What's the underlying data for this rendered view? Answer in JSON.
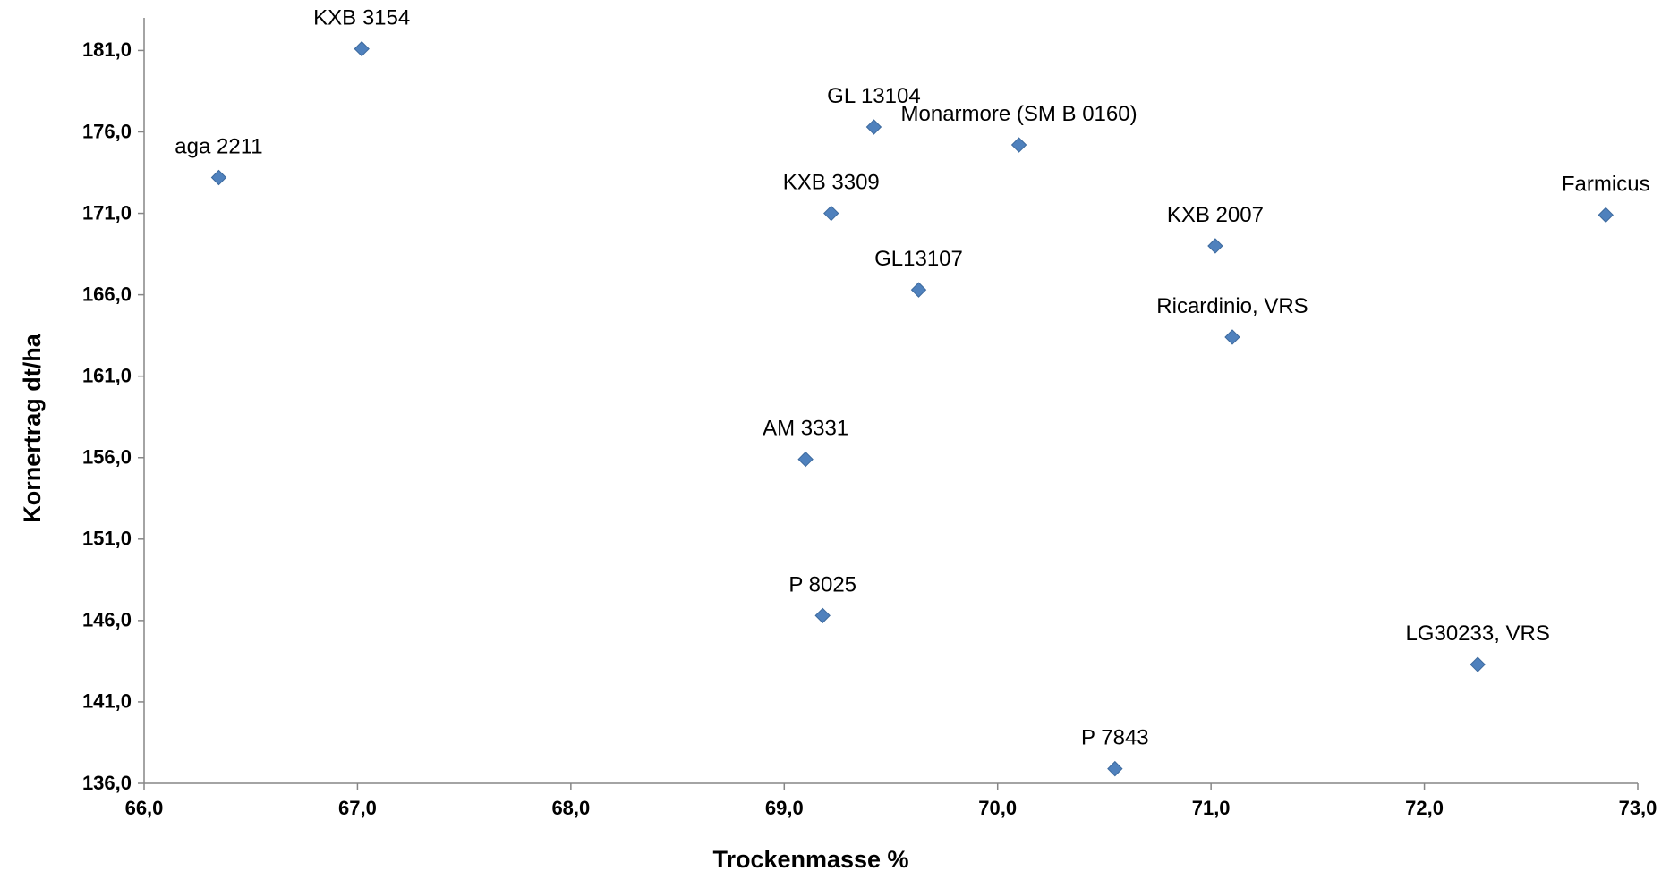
{
  "chart_data": {
    "type": "scatter",
    "title": "",
    "xlabel": "Trockenmasse %",
    "ylabel": "Kornertrag dt/ha",
    "xlim": [
      66.0,
      73.0
    ],
    "ylim": [
      136.0,
      183.0
    ],
    "x_ticks": [
      "66,0",
      "67,0",
      "68,0",
      "69,0",
      "70,0",
      "71,0",
      "72,0",
      "73,0"
    ],
    "x_tick_values": [
      66,
      67,
      68,
      69,
      70,
      71,
      72,
      73
    ],
    "y_ticks": [
      "136,0",
      "141,0",
      "146,0",
      "151,0",
      "156,0",
      "161,0",
      "166,0",
      "171,0",
      "176,0",
      "181,0"
    ],
    "y_tick_values": [
      136,
      141,
      146,
      151,
      156,
      161,
      166,
      171,
      176,
      181
    ],
    "grid": false,
    "legend": "none",
    "marker": "diamond",
    "marker_color": "#4F81BD",
    "points": [
      {
        "label": "KXB 3154",
        "x": 67.02,
        "y": 181.1
      },
      {
        "label": "aga 2211",
        "x": 66.35,
        "y": 173.2
      },
      {
        "label": "GL 13104",
        "x": 69.42,
        "y": 176.3
      },
      {
        "label": "Monarmore (SM B 0160)",
        "x": 70.1,
        "y": 175.2
      },
      {
        "label": "KXB 3309",
        "x": 69.22,
        "y": 171.0
      },
      {
        "label": "Farmicus",
        "x": 72.85,
        "y": 170.9
      },
      {
        "label": "KXB 2007",
        "x": 71.02,
        "y": 169.0
      },
      {
        "label": "GL13107",
        "x": 69.63,
        "y": 166.3
      },
      {
        "label": "Ricardinio, VRS",
        "x": 71.1,
        "y": 163.4
      },
      {
        "label": "AM 3331",
        "x": 69.1,
        "y": 155.9
      },
      {
        "label": "P 8025",
        "x": 69.18,
        "y": 146.3
      },
      {
        "label": "LG30233,  VRS",
        "x": 72.25,
        "y": 143.3
      },
      {
        "label": "P 7843",
        "x": 70.55,
        "y": 136.9
      }
    ]
  }
}
